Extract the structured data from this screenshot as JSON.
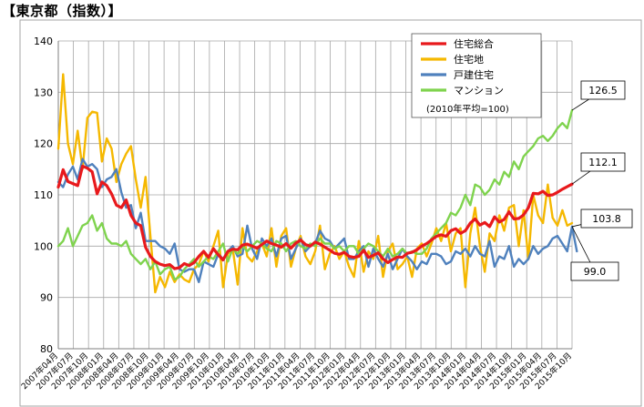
{
  "title": "【東京都（指数）】",
  "chart_data": {
    "type": "line",
    "note": "(2010年平均=100)",
    "ylim": [
      80,
      140
    ],
    "yticks": [
      80,
      90,
      100,
      110,
      120,
      130,
      140
    ],
    "grid": true,
    "legend_position": "top-right",
    "x_labels": [
      "2007年04月",
      "2007年07月",
      "2007年10月",
      "2008年01月",
      "2008年04月",
      "2008年07月",
      "2008年10月",
      "2009年01月",
      "2009年04月",
      "2009年07月",
      "2009年10月",
      "2010年01月",
      "2010年04月",
      "2010年07月",
      "2010年10月",
      "2011年01月",
      "2011年04月",
      "2011年07月",
      "2011年10月",
      "2012年01月",
      "2012年04月",
      "2012年07月",
      "2012年10月",
      "2013年01月",
      "2013年04月",
      "2013年07月",
      "2013年10月",
      "2014年01月",
      "2014年04月",
      "2014年07月",
      "2014年10月",
      "2015年01月",
      "2015年04月",
      "2015年07月",
      "2015年10月"
    ],
    "series": [
      {
        "name": "住宅総合",
        "color": "#e8191c",
        "end_label": "112.1",
        "values": [
          111.5,
          114.9,
          112.6,
          112.2,
          111.8,
          115.6,
          115.2,
          114.5,
          110.2,
          112.5,
          111.8,
          110.2,
          108.0,
          107.5,
          109.0,
          106.0,
          104.5,
          104.0,
          99.8,
          98.0,
          97.0,
          96.5,
          96.2,
          96.4,
          95.6,
          95.8,
          96.6,
          96.2,
          96.8,
          98.0,
          99.0,
          97.8,
          99.5,
          98.3,
          97.3,
          99.0,
          99.4,
          99.3,
          100.2,
          100.4,
          100.0,
          99.6,
          100.3,
          101.0,
          100.5,
          100.2,
          99.8,
          100.5,
          99.6,
          100.6,
          101.2,
          100.3,
          100.0,
          100.8,
          100.4,
          99.8,
          99.2,
          98.6,
          98.4,
          98.8,
          98.0,
          97.8,
          98.0,
          99.2,
          97.8,
          98.2,
          98.7,
          97.5,
          96.8,
          97.4,
          97.9,
          97.8,
          98.6,
          98.8,
          99.3,
          100.0,
          100.5,
          101.2,
          101.9,
          102.2,
          101.9,
          103.0,
          103.4,
          102.5,
          103.0,
          104.5,
          105.3,
          104.1,
          104.6,
          103.8,
          105.7,
          104.7,
          105.2,
          106.7,
          105.3,
          105.4,
          106.1,
          107.5,
          110.3,
          110.2,
          110.7,
          109.9,
          110.0,
          110.5,
          111.1,
          111.6,
          112.1
        ]
      },
      {
        "name": "住宅地",
        "color": "#f5b800",
        "values": [
          119.0,
          133.5,
          120.0,
          116.0,
          122.5,
          115.0,
          125.0,
          126.2,
          126.0,
          116.5,
          121.0,
          119.0,
          112.5,
          116.0,
          118.0,
          119.5,
          113.0,
          107.5,
          113.5,
          102.0,
          91.0,
          94.0,
          92.0,
          95.0,
          93.0,
          94.5,
          93.5,
          93.0,
          95.5,
          96.5,
          99.0,
          97.0,
          100.0,
          103.0,
          92.0,
          98.5,
          99.5,
          92.5,
          103.5,
          98.0,
          97.0,
          99.0,
          100.5,
          98.0,
          103.5,
          96.0,
          102.0,
          103.5,
          96.0,
          99.5,
          102.0,
          98.0,
          96.5,
          99.0,
          104.0,
          95.5,
          98.5,
          100.0,
          97.5,
          99.0,
          96.0,
          94.0,
          101.0,
          95.0,
          99.0,
          97.5,
          102.0,
          94.0,
          99.0,
          100.5,
          95.5,
          96.5,
          98.0,
          94.0,
          99.5,
          100.5,
          98.0,
          100.5,
          103.5,
          101.0,
          104.5,
          99.0,
          102.5,
          103.5,
          92.0,
          102.5,
          107.5,
          100.0,
          95.0,
          102.5,
          101.0,
          106.0,
          103.0,
          107.5,
          108.0,
          100.0,
          107.0,
          97.5,
          110.0,
          106.0,
          104.5,
          112.0,
          105.5,
          104.0,
          107.0,
          104.0,
          104.5
        ]
      },
      {
        "name": "戸建住宅",
        "color": "#4f81bd",
        "end_label": "103.8",
        "end_label_2": "99.0",
        "values": [
          112.5,
          111.5,
          114.0,
          115.5,
          113.0,
          117.0,
          115.5,
          116.0,
          115.0,
          111.5,
          113.0,
          113.5,
          115.0,
          110.5,
          107.5,
          108.0,
          103.5,
          106.5,
          101.0,
          101.0,
          101.0,
          100.0,
          99.5,
          98.5,
          100.5,
          95.5,
          95.0,
          95.5,
          95.5,
          93.0,
          97.0,
          96.5,
          96.0,
          98.5,
          97.5,
          99.0,
          100.0,
          98.0,
          98.5,
          104.0,
          99.5,
          97.5,
          101.5,
          100.0,
          101.5,
          98.0,
          101.5,
          102.0,
          97.5,
          99.5,
          101.5,
          99.0,
          100.0,
          100.5,
          103.0,
          101.5,
          101.0,
          99.5,
          100.5,
          101.5,
          97.5,
          97.5,
          99.0,
          100.0,
          96.0,
          99.5,
          97.5,
          96.0,
          98.5,
          95.5,
          97.5,
          99.5,
          98.0,
          97.0,
          95.5,
          97.0,
          96.5,
          98.5,
          98.5,
          98.0,
          96.5,
          97.0,
          99.0,
          98.5,
          99.5,
          98.0,
          100.0,
          98.5,
          98.0,
          101.0,
          96.0,
          98.0,
          97.5,
          100.0,
          96.0,
          97.5,
          96.5,
          97.5,
          100.0,
          98.5,
          99.5,
          100.0,
          101.5,
          102.0,
          100.5,
          99.0,
          103.8,
          99.0
        ]
      },
      {
        "name": "マンション",
        "color": "#7fd34e",
        "end_label": "126.5",
        "values": [
          100.0,
          101.0,
          103.5,
          100.0,
          102.0,
          104.0,
          104.5,
          106.0,
          103.0,
          104.5,
          101.5,
          100.5,
          100.5,
          100.0,
          101.0,
          98.5,
          97.5,
          96.5,
          97.5,
          95.5,
          97.0,
          94.5,
          95.5,
          96.0,
          93.5,
          94.0,
          95.5,
          96.5,
          97.5,
          96.0,
          97.0,
          98.0,
          97.5,
          99.0,
          100.5,
          97.0,
          99.5,
          98.5,
          100.0,
          99.0,
          100.0,
          101.0,
          100.5,
          99.5,
          99.0,
          101.0,
          100.5,
          99.0,
          100.5,
          101.0,
          100.0,
          99.5,
          100.5,
          100.0,
          101.5,
          100.5,
          100.5,
          99.5,
          100.0,
          99.0,
          100.0,
          100.0,
          98.5,
          99.5,
          100.5,
          100.0,
          99.0,
          98.0,
          99.5,
          98.0,
          98.5,
          99.5,
          98.5,
          99.0,
          98.5,
          98.5,
          99.5,
          101.5,
          102.5,
          103.5,
          104.5,
          106.5,
          106.0,
          107.5,
          110.0,
          108.0,
          112.0,
          111.5,
          110.0,
          111.0,
          113.0,
          112.0,
          114.5,
          113.5,
          116.5,
          115.0,
          117.5,
          118.5,
          119.5,
          121.0,
          121.5,
          120.5,
          121.5,
          123.0,
          124.0,
          123.0,
          126.5
        ]
      }
    ]
  }
}
